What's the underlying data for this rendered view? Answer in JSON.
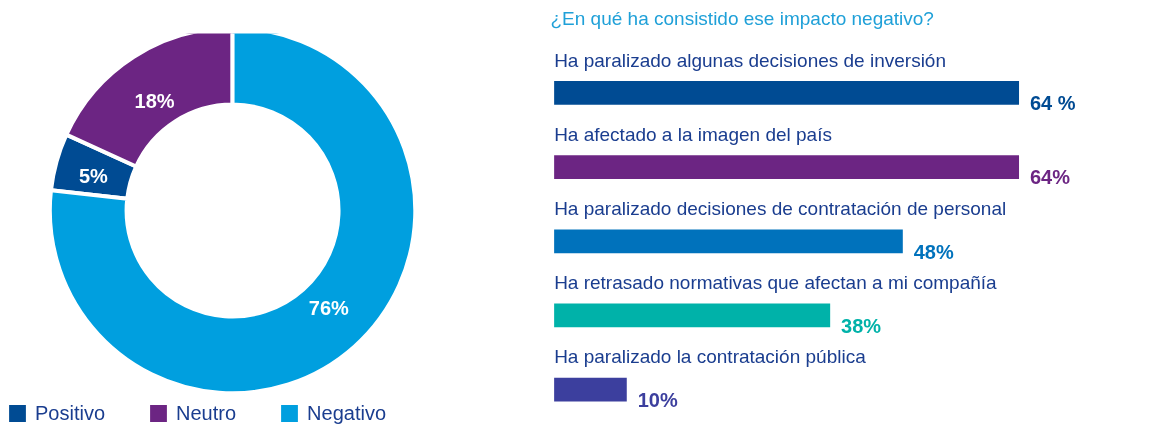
{
  "chart_data": [
    {
      "type": "donut",
      "categories": [
        "Positivo",
        "Neutro",
        "Negativo"
      ],
      "values": [
        5,
        18,
        76
      ],
      "colors": [
        "#004b93",
        "#6c2583",
        "#009fdf"
      ],
      "value_labels": [
        "5%",
        "18%",
        "76%"
      ],
      "legend": "bottom"
    },
    {
      "type": "bar",
      "orientation": "horizontal",
      "title": "¿En qué ha consistido ese impacto negativo?",
      "categories": [
        "Ha paralizado algunas decisiones de inversión",
        "Ha afectado a la imagen del país",
        "Ha paralizado decisiones de contratación de personal",
        "Ha retrasado normativas que afectan a mi compañía",
        "Ha paralizado la contratación pública"
      ],
      "values": [
        64,
        64,
        48,
        38,
        10
      ],
      "colors": [
        "#004b93",
        "#6c2583",
        "#0072bc",
        "#00b2a9",
        "#3c3f9e"
      ],
      "value_labels": [
        "64 %",
        "64%",
        "48%",
        "38%",
        "10%"
      ]
    }
  ]
}
